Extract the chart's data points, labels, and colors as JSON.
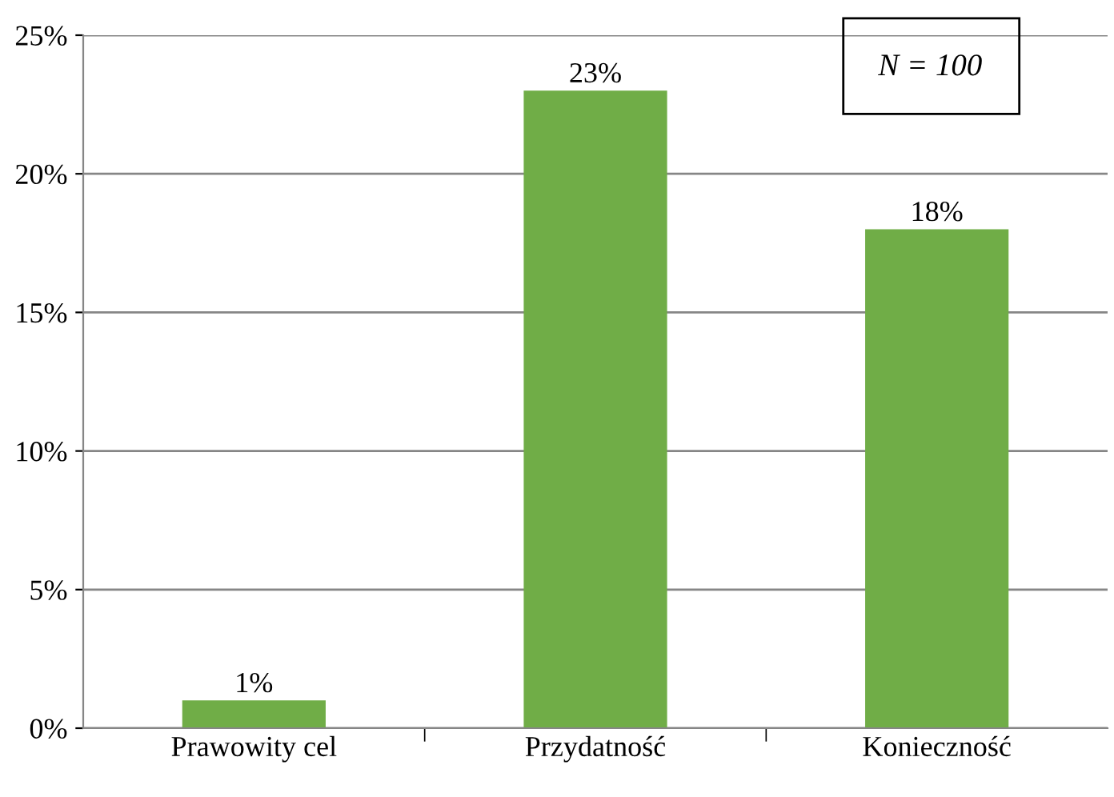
{
  "chart_data": {
    "type": "bar",
    "categories": [
      "Prawowity cel",
      "Przydatność",
      "Konieczność"
    ],
    "values": [
      1,
      23,
      18
    ],
    "value_labels": [
      "1%",
      "23%",
      "18%"
    ],
    "color": "#70ad47",
    "ylim": [
      0,
      25
    ],
    "yticks": [
      {
        "value": 0,
        "label": "0%"
      },
      {
        "value": 5,
        "label": "5%"
      },
      {
        "value": 10,
        "label": "10%"
      },
      {
        "value": 15,
        "label": "15%"
      },
      {
        "value": 20,
        "label": "20%"
      },
      {
        "value": 25,
        "label": "25%"
      }
    ],
    "grid": "y",
    "annotations": [
      "N = 100"
    ]
  }
}
